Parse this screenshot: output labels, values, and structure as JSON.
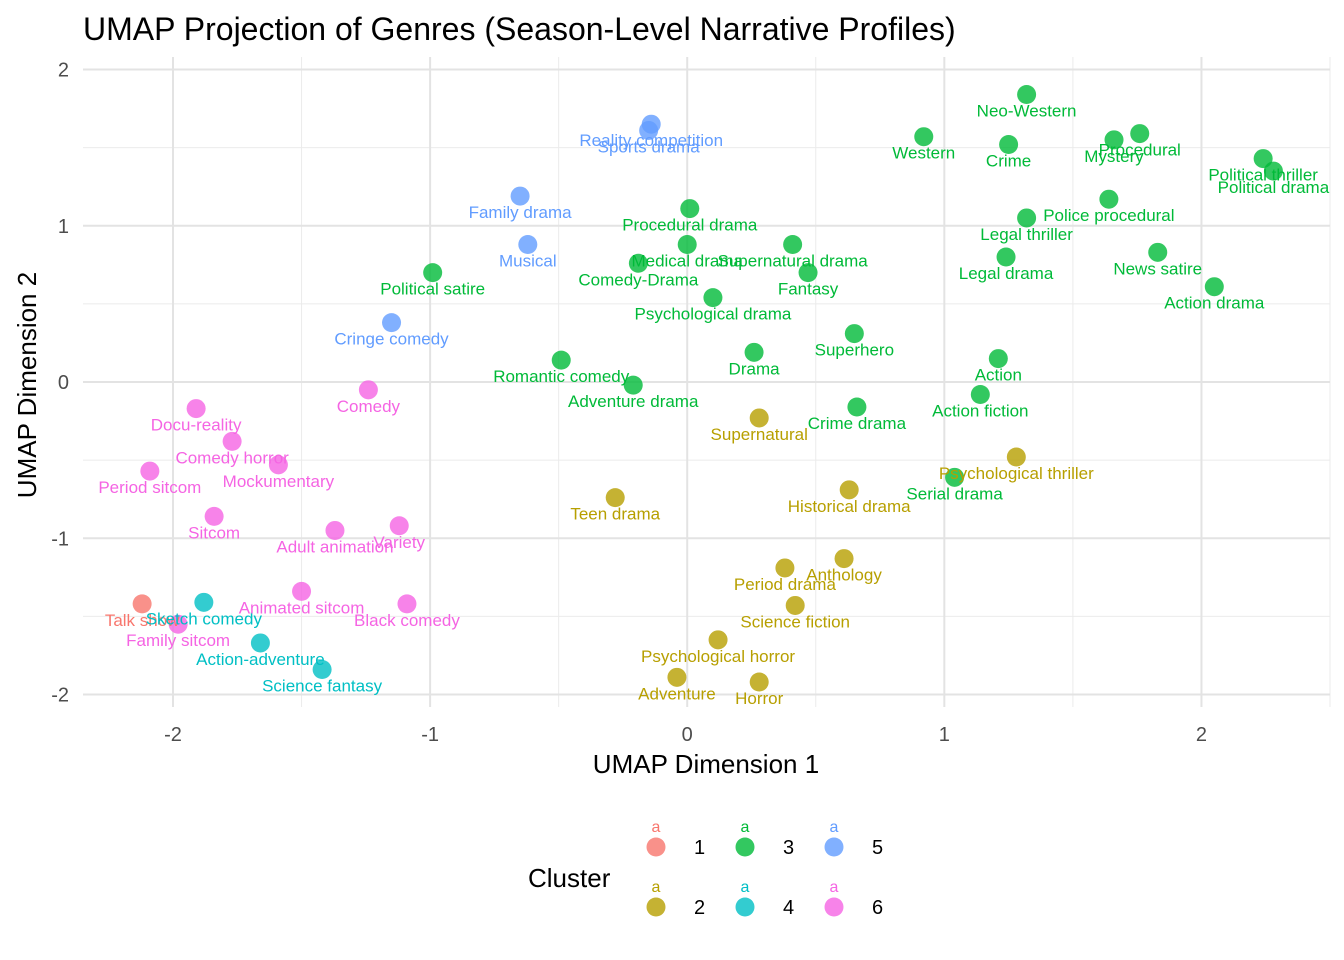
{
  "chart_data": {
    "type": "scatter",
    "title": "UMAP Projection of Genres (Season-Level Narrative Profiles)",
    "xlabel": "UMAP Dimension 1",
    "ylabel": "UMAP Dimension 2",
    "xlim": [
      -2.35,
      2.5
    ],
    "ylim": [
      -2.08,
      2.08
    ],
    "x_ticks": [
      -2,
      -1,
      0,
      1,
      2
    ],
    "y_ticks": [
      -2,
      -1,
      0,
      1,
      2
    ],
    "grid": true,
    "legend": {
      "title": "Cluster",
      "placement": "bottom",
      "key_glyph": "a",
      "entries": [
        {
          "cluster": "1",
          "color": "#F8766D"
        },
        {
          "cluster": "2",
          "color": "#B79F00"
        },
        {
          "cluster": "3",
          "color": "#00BA38"
        },
        {
          "cluster": "4",
          "color": "#00BFC4"
        },
        {
          "cluster": "5",
          "color": "#619CFF"
        },
        {
          "cluster": "6",
          "color": "#F564E3"
        }
      ]
    },
    "points": [
      {
        "label": "Talk show",
        "x": -2.12,
        "y": -1.42,
        "cluster": "1"
      },
      {
        "label": "Teen drama",
        "x": -0.28,
        "y": -0.74,
        "cluster": "2"
      },
      {
        "label": "Supernatural",
        "x": 0.28,
        "y": -0.23,
        "cluster": "2"
      },
      {
        "label": "Historical drama",
        "x": 0.63,
        "y": -0.69,
        "cluster": "2"
      },
      {
        "label": "Psychological thriller",
        "x": 1.28,
        "y": -0.48,
        "cluster": "2"
      },
      {
        "label": "Period drama",
        "x": 0.38,
        "y": -1.19,
        "cluster": "2"
      },
      {
        "label": "Anthology",
        "x": 0.61,
        "y": -1.13,
        "cluster": "2"
      },
      {
        "label": "Science fiction",
        "x": 0.42,
        "y": -1.43,
        "cluster": "2"
      },
      {
        "label": "Psychological horror",
        "x": 0.12,
        "y": -1.65,
        "cluster": "2"
      },
      {
        "label": "Adventure",
        "x": -0.04,
        "y": -1.89,
        "cluster": "2"
      },
      {
        "label": "Horror",
        "x": 0.28,
        "y": -1.92,
        "cluster": "2"
      },
      {
        "label": "Neo-Western",
        "x": 1.32,
        "y": 1.84,
        "cluster": "3"
      },
      {
        "label": "Western",
        "x": 0.92,
        "y": 1.57,
        "cluster": "3"
      },
      {
        "label": "Crime",
        "x": 1.25,
        "y": 1.52,
        "cluster": "3"
      },
      {
        "label": "Mystery",
        "x": 1.66,
        "y": 1.55,
        "cluster": "3"
      },
      {
        "label": "Procedural",
        "x": 1.76,
        "y": 1.59,
        "cluster": "3"
      },
      {
        "label": "Political thriller",
        "x": 2.24,
        "y": 1.43,
        "cluster": "3"
      },
      {
        "label": "Political drama",
        "x": 2.28,
        "y": 1.35,
        "cluster": "3"
      },
      {
        "label": "Police procedural",
        "x": 1.64,
        "y": 1.17,
        "cluster": "3"
      },
      {
        "label": "Legal thriller",
        "x": 1.32,
        "y": 1.05,
        "cluster": "3"
      },
      {
        "label": "Legal drama",
        "x": 1.24,
        "y": 0.8,
        "cluster": "3"
      },
      {
        "label": "News satire",
        "x": 1.83,
        "y": 0.83,
        "cluster": "3"
      },
      {
        "label": "Action drama",
        "x": 2.05,
        "y": 0.61,
        "cluster": "3"
      },
      {
        "label": "Procedural drama",
        "x": 0.01,
        "y": 1.11,
        "cluster": "3"
      },
      {
        "label": "Medical drama",
        "x": 0.0,
        "y": 0.88,
        "cluster": "3"
      },
      {
        "label": "Supernatural drama",
        "x": 0.41,
        "y": 0.88,
        "cluster": "3"
      },
      {
        "label": "Comedy-Drama",
        "x": -0.19,
        "y": 0.76,
        "cluster": "3"
      },
      {
        "label": "Fantasy",
        "x": 0.47,
        "y": 0.7,
        "cluster": "3"
      },
      {
        "label": "Psychological drama",
        "x": 0.1,
        "y": 0.54,
        "cluster": "3"
      },
      {
        "label": "Political satire",
        "x": -0.99,
        "y": 0.7,
        "cluster": "3"
      },
      {
        "label": "Superhero",
        "x": 0.65,
        "y": 0.31,
        "cluster": "3"
      },
      {
        "label": "Drama",
        "x": 0.26,
        "y": 0.19,
        "cluster": "3"
      },
      {
        "label": "Romantic comedy",
        "x": -0.49,
        "y": 0.14,
        "cluster": "3"
      },
      {
        "label": "Action",
        "x": 1.21,
        "y": 0.15,
        "cluster": "3"
      },
      {
        "label": "Adventure drama",
        "x": -0.21,
        "y": -0.02,
        "cluster": "3"
      },
      {
        "label": "Action fiction",
        "x": 1.14,
        "y": -0.08,
        "cluster": "3"
      },
      {
        "label": "Crime drama",
        "x": 0.66,
        "y": -0.16,
        "cluster": "3"
      },
      {
        "label": "Serial drama",
        "x": 1.04,
        "y": -0.61,
        "cluster": "3"
      },
      {
        "label": "Sketch comedy",
        "x": -1.88,
        "y": -1.41,
        "cluster": "4"
      },
      {
        "label": "Action-adventure",
        "x": -1.66,
        "y": -1.67,
        "cluster": "4"
      },
      {
        "label": "Science fantasy",
        "x": -1.42,
        "y": -1.84,
        "cluster": "4"
      },
      {
        "label": "Reality competition",
        "x": -0.14,
        "y": 1.65,
        "cluster": "5"
      },
      {
        "label": "Sports drama",
        "x": -0.15,
        "y": 1.61,
        "cluster": "5"
      },
      {
        "label": "Family drama",
        "x": -0.65,
        "y": 1.19,
        "cluster": "5"
      },
      {
        "label": "Musical",
        "x": -0.62,
        "y": 0.88,
        "cluster": "5"
      },
      {
        "label": "Cringe comedy",
        "x": -1.15,
        "y": 0.38,
        "cluster": "5"
      },
      {
        "label": "Comedy",
        "x": -1.24,
        "y": -0.05,
        "cluster": "6"
      },
      {
        "label": "Docu-reality",
        "x": -1.91,
        "y": -0.17,
        "cluster": "6"
      },
      {
        "label": "Comedy horror",
        "x": -1.77,
        "y": -0.38,
        "cluster": "6"
      },
      {
        "label": "Mockumentary",
        "x": -1.59,
        "y": -0.53,
        "cluster": "6"
      },
      {
        "label": "Period sitcom",
        "x": -2.09,
        "y": -0.57,
        "cluster": "6"
      },
      {
        "label": "Sitcom",
        "x": -1.84,
        "y": -0.86,
        "cluster": "6"
      },
      {
        "label": "Adult animation",
        "x": -1.37,
        "y": -0.95,
        "cluster": "6"
      },
      {
        "label": "Variety",
        "x": -1.12,
        "y": -0.92,
        "cluster": "6"
      },
      {
        "label": "Animated sitcom",
        "x": -1.5,
        "y": -1.34,
        "cluster": "6"
      },
      {
        "label": "Black comedy",
        "x": -1.09,
        "y": -1.42,
        "cluster": "6"
      },
      {
        "label": "Family sitcom",
        "x": -1.98,
        "y": -1.55,
        "cluster": "6"
      }
    ]
  }
}
